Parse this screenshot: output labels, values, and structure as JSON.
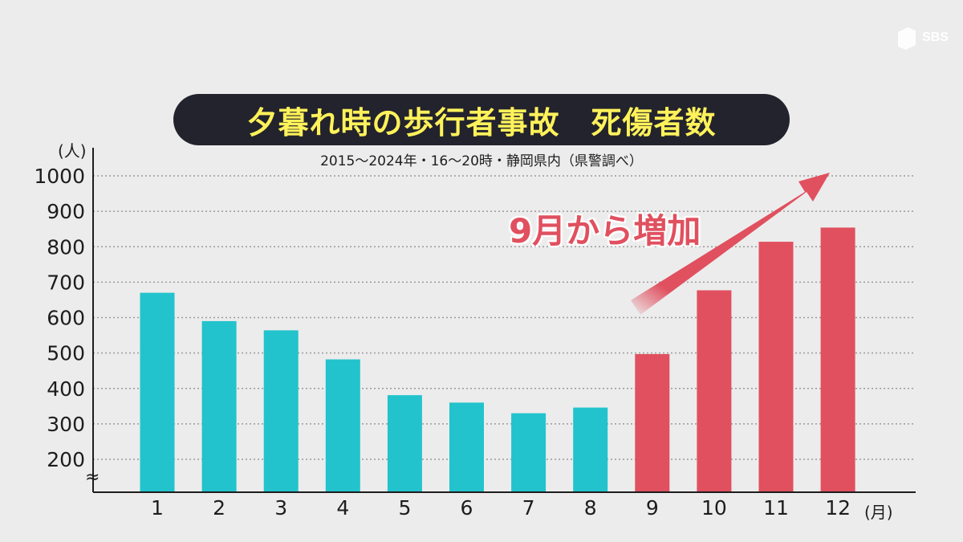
{
  "logo": {
    "text": "SBS",
    "icon": "sbs-logo-icon"
  },
  "chart_data": {
    "type": "bar",
    "title": "夕暮れ時の歩行者事故　死傷者数",
    "subtitle": "2015〜2024年・16〜20時・静岡県内（県警調べ）",
    "y_unit": "(人)",
    "x_unit": "(月)",
    "annotation": "9月から増加",
    "categories": [
      "1",
      "2",
      "3",
      "4",
      "5",
      "6",
      "7",
      "8",
      "9",
      "10",
      "11",
      "12"
    ],
    "values": [
      670,
      590,
      564,
      482,
      381,
      360,
      330,
      346,
      497,
      677,
      814,
      854
    ],
    "ylim": [
      200,
      1000
    ],
    "y_ticks": [
      "1000",
      "900",
      "800",
      "700",
      "600",
      "500",
      "400",
      "300",
      "200"
    ],
    "axis_break": "≈",
    "grid": true,
    "colors": {
      "before": "#22c3cc",
      "after": "#e0505f",
      "grid": "#9a9a9a",
      "title_bg": "#23232d",
      "title_text": "#fff25a"
    },
    "highlight_from_index": 8
  }
}
